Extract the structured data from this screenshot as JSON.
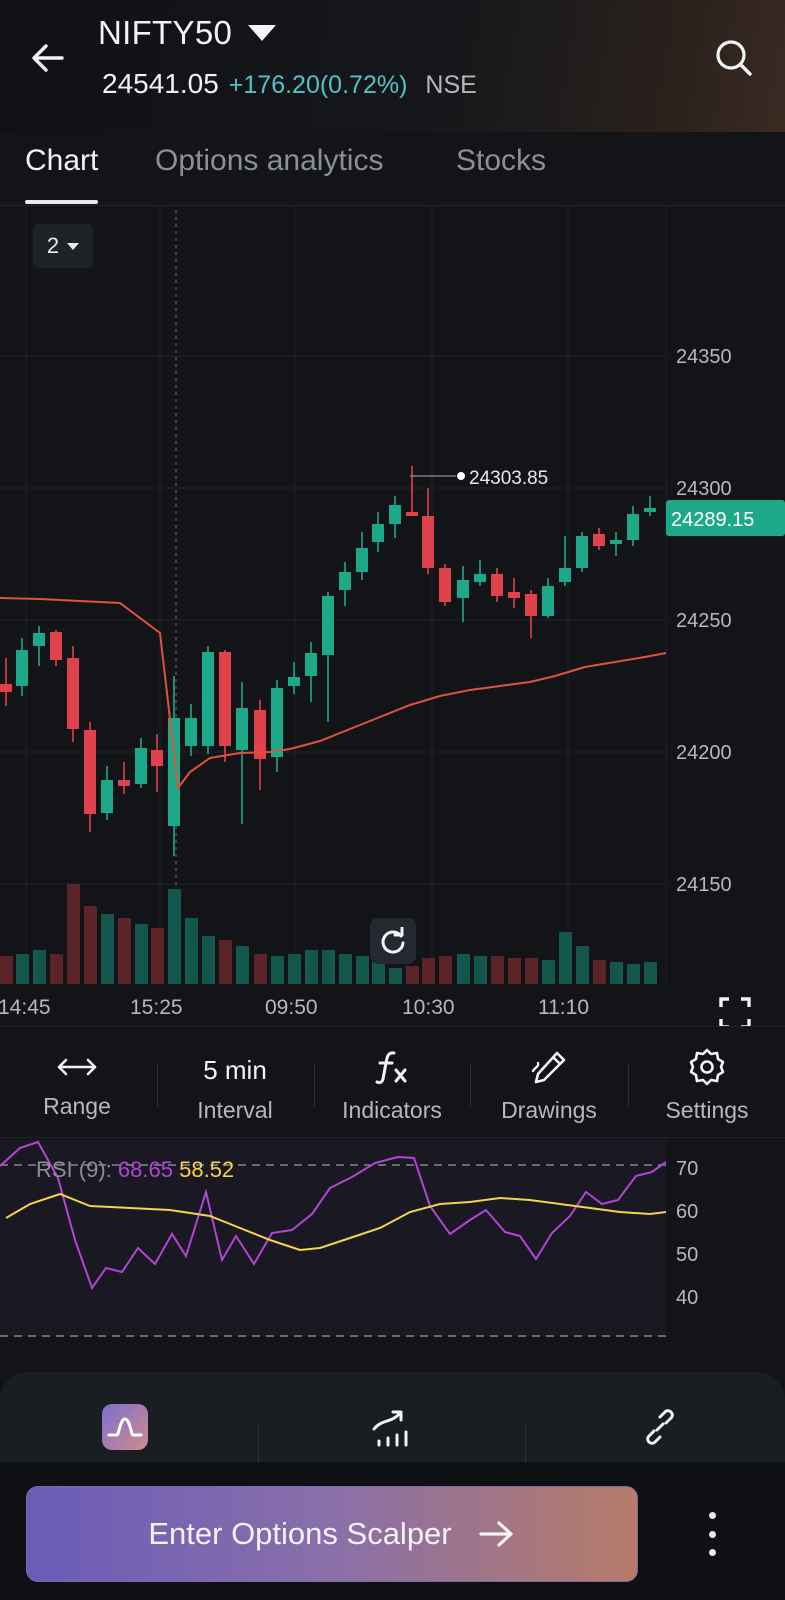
{
  "header": {
    "title": "NIFTY50",
    "price": "24541.05",
    "change": "+176.20(0.72%)",
    "exchange": "NSE"
  },
  "tabs": [
    {
      "label": "Chart",
      "active": true
    },
    {
      "label": "Options analytics",
      "active": false
    },
    {
      "label": "Stocks",
      "active": false
    }
  ],
  "chart": {
    "candle_count_selector": "2",
    "price_axis": [
      "24350",
      "24300",
      "24250",
      "24200",
      "24150"
    ],
    "time_axis": [
      "14:45",
      "15:25",
      "09:50",
      "10:30",
      "11:10"
    ],
    "high_marker": "24303.85",
    "last_price": "24289.15",
    "up_color": "#1ea88a",
    "down_color": "#e0424b",
    "vwap_color": "#e0513e"
  },
  "toolbar": {
    "range_label": "Range",
    "interval_value": "5 min",
    "interval_label": "Interval",
    "indicators_label": "Indicators",
    "drawings_label": "Drawings",
    "settings_label": "Settings"
  },
  "rsi": {
    "name": "RSI (9):",
    "value1": "68.65",
    "value2": "58.52",
    "axis": [
      "70",
      "60",
      "50",
      "40"
    ],
    "line1_color": "#b145d4",
    "line2_color": "#f5d34b"
  },
  "footer": {
    "cta_label": "Enter Options Scalper"
  },
  "icons": {
    "back": "arrow-left-icon",
    "search": "search-icon",
    "refresh": "refresh-icon",
    "fullscreen": "fullscreen-icon",
    "range": "double-arrow-icon",
    "indicators": "fx-icon",
    "drawings": "pen-icon",
    "settings": "gear-icon",
    "strategy": "strategy-icon",
    "trend": "trend-chart-icon",
    "link": "link-icon",
    "more": "more-vertical-icon"
  }
}
